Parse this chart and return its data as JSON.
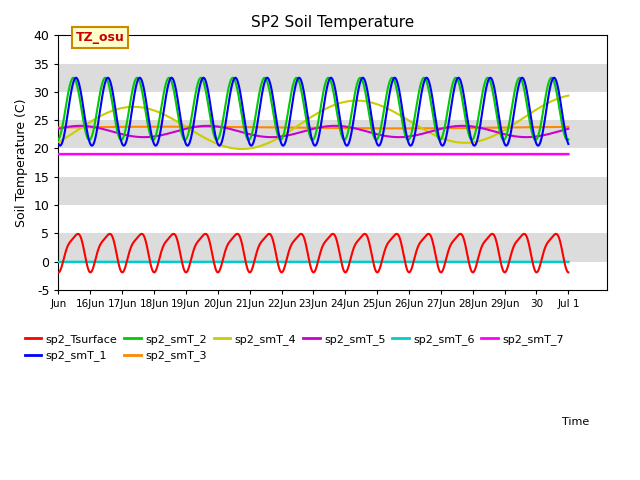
{
  "title": "SP2 Soil Temperature",
  "ylabel": "Soil Temperature (C)",
  "annotation": "TZ_osu",
  "ylim": [
    -5,
    40
  ],
  "yticks": [
    -5,
    0,
    5,
    10,
    15,
    20,
    25,
    30,
    35,
    40
  ],
  "xlim": [
    15.4,
    32.2
  ],
  "xtick_positions": [
    15,
    16,
    17,
    18,
    19,
    20,
    21,
    22,
    23,
    24,
    25,
    26,
    27,
    28,
    29,
    30,
    31
  ],
  "xtick_labels": [
    "Jun",
    "16Jun",
    "17Jun",
    "18Jun",
    "19Jun",
    "20Jun",
    "21Jun",
    "22Jun",
    "23Jun",
    "24Jun",
    "25Jun",
    "26Jun",
    "27Jun",
    "28Jun",
    "29Jun",
    "30",
    "Jul 1"
  ],
  "series_colors": {
    "sp2_Tsurface": "#FF0000",
    "sp2_smT_1": "#0000FF",
    "sp2_smT_2": "#00CC00",
    "sp2_smT_3": "#FF8800",
    "sp2_smT_4": "#CCCC00",
    "sp2_smT_5": "#CC00CC",
    "sp2_smT_6": "#00CCCC",
    "sp2_smT_7": "#FF00FF"
  },
  "band_colors": [
    "#FFFFFF",
    "#DCDCDC"
  ],
  "sp2_smT_7_level": 19.0,
  "sp2_smT_6_level": -0.05
}
